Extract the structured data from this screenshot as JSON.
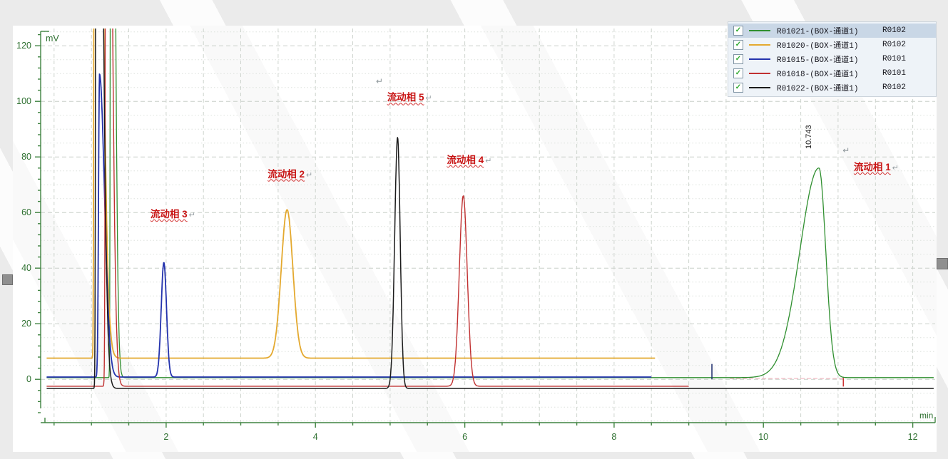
{
  "icons": {
    "checkbox_check": "✓",
    "return_mark": "↵"
  },
  "legend": {
    "rows": [
      {
        "label": "R01021-(BOX-通道1)",
        "short": "R0102",
        "color": "#2f8f2f",
        "checked": true,
        "selected": true
      },
      {
        "label": "R01020-(BOX-通道1)",
        "short": "R0102",
        "color": "#e4a92f",
        "checked": true,
        "selected": false
      },
      {
        "label": "R01015-(BOX-通道1)",
        "short": "R0101",
        "color": "#2433ad",
        "checked": true,
        "selected": false
      },
      {
        "label": "R01018-(BOX-通道1)",
        "short": "R0101",
        "color": "#c03030",
        "checked": true,
        "selected": false
      },
      {
        "label": "R01022-(BOX-通道1)",
        "short": "R0102",
        "color": "#1b1b1b",
        "checked": true,
        "selected": false
      }
    ]
  },
  "chart_data": {
    "type": "line",
    "title": "",
    "xlabel": "min",
    "ylabel": "mV",
    "xlim": [
      0.32,
      12.3
    ],
    "ylim": [
      -15.6,
      126.2
    ],
    "x_major_ticks": [
      2,
      4,
      6,
      8,
      10,
      12
    ],
    "x_tick_step": 0.5,
    "y_major_ticks": [
      0,
      20,
      40,
      60,
      80,
      100,
      120
    ],
    "y_tick_minor_step": 4,
    "grid": {
      "x_step": 0.5,
      "y_major_step": 20,
      "y_minor_step": 5
    },
    "series": [
      {
        "name": "R01021-(BOX-通道1)",
        "color": "#2f8f2f",
        "baseline": 0.6,
        "x_start": 0.4,
        "x_end": 12.28,
        "solvent_front": {
          "x": 1.262,
          "amp": 400,
          "sigma_left": 0.01,
          "sigma_right": 0.06
        },
        "peaks": [
          {
            "rt": 10.743,
            "apex_mv": 76,
            "sigma_left": 0.36,
            "sigma_right": 0.13,
            "label": "流动相 1"
          }
        ]
      },
      {
        "name": "R01020-(BOX-通道1)",
        "color": "#e4a92f",
        "baseline": 7.6,
        "x_start": 0.4,
        "x_end": 8.55,
        "solvent_front": {
          "x": 1.045,
          "amp": 400,
          "sigma_left": 0.012,
          "sigma_right": 0.11
        },
        "peaks": [
          {
            "rt": 3.62,
            "apex_mv": 61,
            "sigma_left": 0.11,
            "sigma_right": 0.11,
            "label": "流动相 2"
          }
        ]
      },
      {
        "name": "R01015-(BOX-通道1)",
        "color": "#2433ad",
        "baseline": 0.8,
        "x_start": 0.4,
        "x_end": 8.5,
        "solvent_front": {
          "x": 1.108,
          "amp": 109,
          "sigma_left": 0.018,
          "sigma_right": 0.095
        },
        "peaks": [
          {
            "rt": 1.97,
            "apex_mv": 42,
            "sigma_left": 0.05,
            "sigma_right": 0.05,
            "label": "流动相 3"
          }
        ]
      },
      {
        "name": "R01018-(BOX-通道1)",
        "color": "#c03030",
        "baseline": -2.5,
        "x_start": 0.4,
        "x_end": 9.0,
        "solvent_front": {
          "x": 1.2,
          "amp": 400,
          "sigma_left": 0.014,
          "sigma_right": 0.08
        },
        "peaks": [
          {
            "rt": 5.98,
            "apex_mv": 66,
            "sigma_left": 0.075,
            "sigma_right": 0.075,
            "label": "流动相 4"
          }
        ]
      },
      {
        "name": "R01022-(BOX-通道1)",
        "color": "#1b1b1b",
        "baseline": -3.3,
        "x_start": 0.4,
        "x_end": 12.28,
        "solvent_front": {
          "x": 1.068,
          "amp": 400,
          "sigma_left": 0.012,
          "sigma_right": 0.09
        },
        "peaks": [
          {
            "rt": 5.1,
            "apex_mv": 87,
            "sigma_left": 0.055,
            "sigma_right": 0.05,
            "label": "流动相 5"
          }
        ]
      }
    ],
    "peak_annotations": [
      {
        "text": "流动相 3",
        "x": 1.79,
        "y_mv": 59,
        "suffix": "↵"
      },
      {
        "text": "流动相 2",
        "x": 3.36,
        "y_mv": 73.5,
        "suffix": "↵"
      },
      {
        "text": "流动相 5",
        "x": 4.96,
        "y_mv": 101,
        "suffix": "↵"
      },
      {
        "text": "流动相 4",
        "x": 5.76,
        "y_mv": 78.5,
        "suffix": "↵"
      },
      {
        "text": "流动相 1",
        "x": 11.21,
        "y_mv": 76,
        "suffix": "↵"
      }
    ],
    "return_marks": [
      {
        "x": 4.81,
        "y_mv": 107
      },
      {
        "x": 11.06,
        "y_mv": 82
      }
    ],
    "rt_label": {
      "text": "10.743",
      "x": 10.743,
      "y_mv": 82
    },
    "integration": {
      "baseline": {
        "x1": 9.55,
        "x2": 11.07,
        "y_mv": 0.3,
        "color": "#f0a8b6"
      },
      "end_tick": {
        "x": 11.07,
        "y1": 0.5,
        "y2": -2.6,
        "color": "#cc3333"
      },
      "event_tick": {
        "x": 9.31,
        "y1": 0,
        "y2": 5.5,
        "color": "#1a2a6a"
      }
    },
    "axis_color": "#3f8340",
    "label_color": "#2e7030"
  }
}
